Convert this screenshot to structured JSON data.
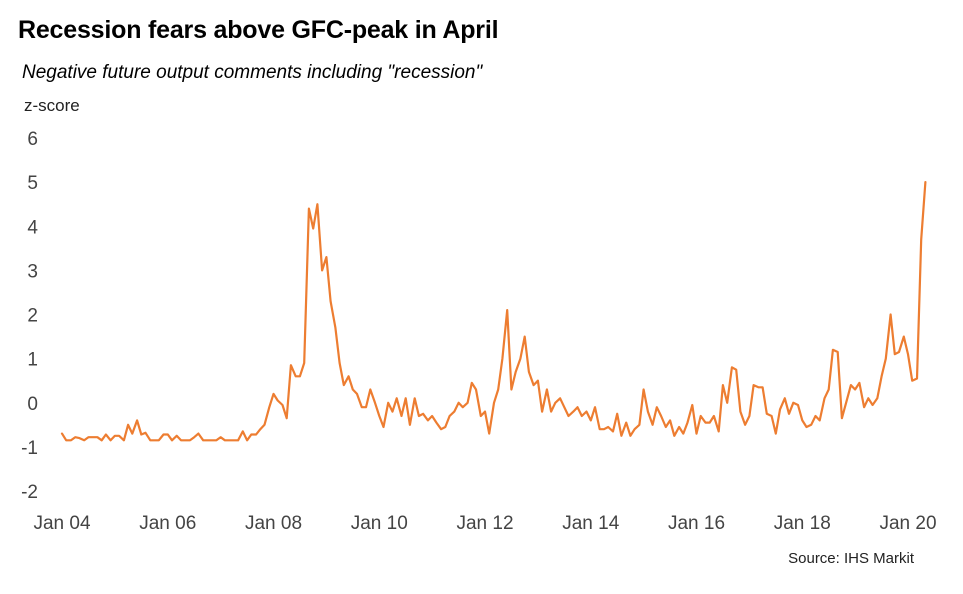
{
  "chart_data": {
    "type": "line",
    "title": "Recession fears above GFC-peak in April",
    "subtitle": "Negative future output comments including \"recession\"",
    "ylabel": "z-score",
    "xlabel": "",
    "source": "Source: IHS Markit",
    "ylim": [
      -2,
      6
    ],
    "yticks": [
      6,
      5,
      4,
      3,
      2,
      1,
      0,
      -1,
      -2
    ],
    "xlim": [
      2004.0,
      2020.5
    ],
    "xticks": [
      {
        "value": 2004,
        "label": "Jan 04"
      },
      {
        "value": 2006,
        "label": "Jan 06"
      },
      {
        "value": 2008,
        "label": "Jan 08"
      },
      {
        "value": 2010,
        "label": "Jan 10"
      },
      {
        "value": 2012,
        "label": "Jan 12"
      },
      {
        "value": 2014,
        "label": "Jan 14"
      },
      {
        "value": 2016,
        "label": "Jan 16"
      },
      {
        "value": 2018,
        "label": "Jan 18"
      },
      {
        "value": 2020,
        "label": "Jan 20"
      }
    ],
    "grid": false,
    "line_color": "#ED7D31",
    "series": [
      {
        "name": "",
        "x": [
          2004.0,
          2004.08,
          2004.17,
          2004.25,
          2004.33,
          2004.42,
          2004.5,
          2004.58,
          2004.67,
          2004.75,
          2004.83,
          2004.92,
          2005.0,
          2005.08,
          2005.17,
          2005.25,
          2005.33,
          2005.42,
          2005.5,
          2005.58,
          2005.67,
          2005.75,
          2005.83,
          2005.92,
          2006.0,
          2006.08,
          2006.17,
          2006.25,
          2006.33,
          2006.42,
          2006.5,
          2006.58,
          2006.67,
          2006.75,
          2006.83,
          2006.92,
          2007.0,
          2007.08,
          2007.17,
          2007.25,
          2007.33,
          2007.42,
          2007.5,
          2007.58,
          2007.67,
          2007.75,
          2007.83,
          2007.92,
          2008.0,
          2008.08,
          2008.17,
          2008.25,
          2008.33,
          2008.42,
          2008.5,
          2008.58,
          2008.67,
          2008.75,
          2008.83,
          2008.92,
          2009.0,
          2009.08,
          2009.17,
          2009.25,
          2009.33,
          2009.42,
          2009.5,
          2009.58,
          2009.67,
          2009.75,
          2009.83,
          2009.92,
          2010.0,
          2010.08,
          2010.17,
          2010.25,
          2010.33,
          2010.42,
          2010.5,
          2010.58,
          2010.67,
          2010.75,
          2010.83,
          2010.92,
          2011.0,
          2011.08,
          2011.17,
          2011.25,
          2011.33,
          2011.42,
          2011.5,
          2011.58,
          2011.67,
          2011.75,
          2011.83,
          2011.92,
          2012.0,
          2012.08,
          2012.17,
          2012.25,
          2012.33,
          2012.42,
          2012.5,
          2012.58,
          2012.67,
          2012.75,
          2012.83,
          2012.92,
          2013.0,
          2013.08,
          2013.17,
          2013.25,
          2013.33,
          2013.42,
          2013.5,
          2013.58,
          2013.67,
          2013.75,
          2013.83,
          2013.92,
          2014.0,
          2014.08,
          2014.17,
          2014.25,
          2014.33,
          2014.42,
          2014.5,
          2014.58,
          2014.67,
          2014.75,
          2014.83,
          2014.92,
          2015.0,
          2015.08,
          2015.17,
          2015.25,
          2015.33,
          2015.42,
          2015.5,
          2015.58,
          2015.67,
          2015.75,
          2015.83,
          2015.92,
          2016.0,
          2016.08,
          2016.17,
          2016.25,
          2016.33,
          2016.42,
          2016.5,
          2016.58,
          2016.67,
          2016.75,
          2016.83,
          2016.92,
          2017.0,
          2017.08,
          2017.17,
          2017.25,
          2017.33,
          2017.42,
          2017.5,
          2017.58,
          2017.67,
          2017.75,
          2017.83,
          2017.92,
          2018.0,
          2018.08,
          2018.17,
          2018.25,
          2018.33,
          2018.42,
          2018.5,
          2018.58,
          2018.67,
          2018.75,
          2018.83,
          2018.92,
          2019.0,
          2019.08,
          2019.17,
          2019.25,
          2019.33,
          2019.42,
          2019.5,
          2019.58,
          2019.67,
          2019.75,
          2019.83,
          2019.92,
          2020.0,
          2020.08,
          2020.17,
          2020.25,
          2020.33
        ],
        "values": [
          -0.7,
          -0.85,
          -0.85,
          -0.78,
          -0.8,
          -0.85,
          -0.78,
          -0.78,
          -0.78,
          -0.85,
          -0.72,
          -0.85,
          -0.75,
          -0.75,
          -0.85,
          -0.5,
          -0.7,
          -0.4,
          -0.72,
          -0.68,
          -0.85,
          -0.85,
          -0.85,
          -0.72,
          -0.72,
          -0.85,
          -0.75,
          -0.85,
          -0.85,
          -0.85,
          -0.78,
          -0.7,
          -0.85,
          -0.85,
          -0.85,
          -0.85,
          -0.78,
          -0.85,
          -0.85,
          -0.85,
          -0.85,
          -0.65,
          -0.85,
          -0.72,
          -0.72,
          -0.6,
          -0.5,
          -0.1,
          0.2,
          0.05,
          -0.05,
          -0.35,
          0.85,
          0.6,
          0.6,
          0.9,
          4.4,
          3.95,
          4.5,
          3.0,
          3.3,
          2.3,
          1.7,
          0.9,
          0.4,
          0.6,
          0.3,
          0.2,
          -0.1,
          -0.1,
          0.3,
          0.0,
          -0.3,
          -0.55,
          0.0,
          -0.2,
          0.1,
          -0.3,
          0.1,
          -0.5,
          0.1,
          -0.3,
          -0.25,
          -0.4,
          -0.3,
          -0.45,
          -0.6,
          -0.55,
          -0.3,
          -0.2,
          0.0,
          -0.1,
          0.0,
          0.45,
          0.3,
          -0.3,
          -0.2,
          -0.7,
          0.0,
          0.3,
          1.0,
          2.1,
          0.3,
          0.7,
          1.0,
          1.5,
          0.7,
          0.4,
          0.5,
          -0.2,
          0.3,
          -0.2,
          0.0,
          0.1,
          -0.1,
          -0.3,
          -0.2,
          -0.1,
          -0.3,
          -0.2,
          -0.4,
          -0.1,
          -0.6,
          -0.6,
          -0.55,
          -0.65,
          -0.25,
          -0.75,
          -0.45,
          -0.75,
          -0.6,
          -0.5,
          0.3,
          -0.2,
          -0.5,
          -0.1,
          -0.3,
          -0.55,
          -0.4,
          -0.75,
          -0.55,
          -0.7,
          -0.45,
          -0.05,
          -0.7,
          -0.3,
          -0.45,
          -0.45,
          -0.3,
          -0.65,
          0.4,
          0.0,
          0.8,
          0.75,
          -0.2,
          -0.5,
          -0.3,
          0.4,
          0.35,
          0.35,
          -0.25,
          -0.3,
          -0.7,
          -0.15,
          0.1,
          -0.25,
          0.0,
          -0.05,
          -0.4,
          -0.55,
          -0.5,
          -0.3,
          -0.4,
          0.1,
          0.3,
          1.2,
          1.15,
          -0.35,
          0.0,
          0.4,
          0.3,
          0.45,
          -0.1,
          0.1,
          -0.05,
          0.1,
          0.6,
          1.0,
          2.0,
          1.1,
          1.15,
          1.5,
          1.1,
          0.5,
          0.55,
          3.7,
          5.0
        ]
      }
    ]
  }
}
